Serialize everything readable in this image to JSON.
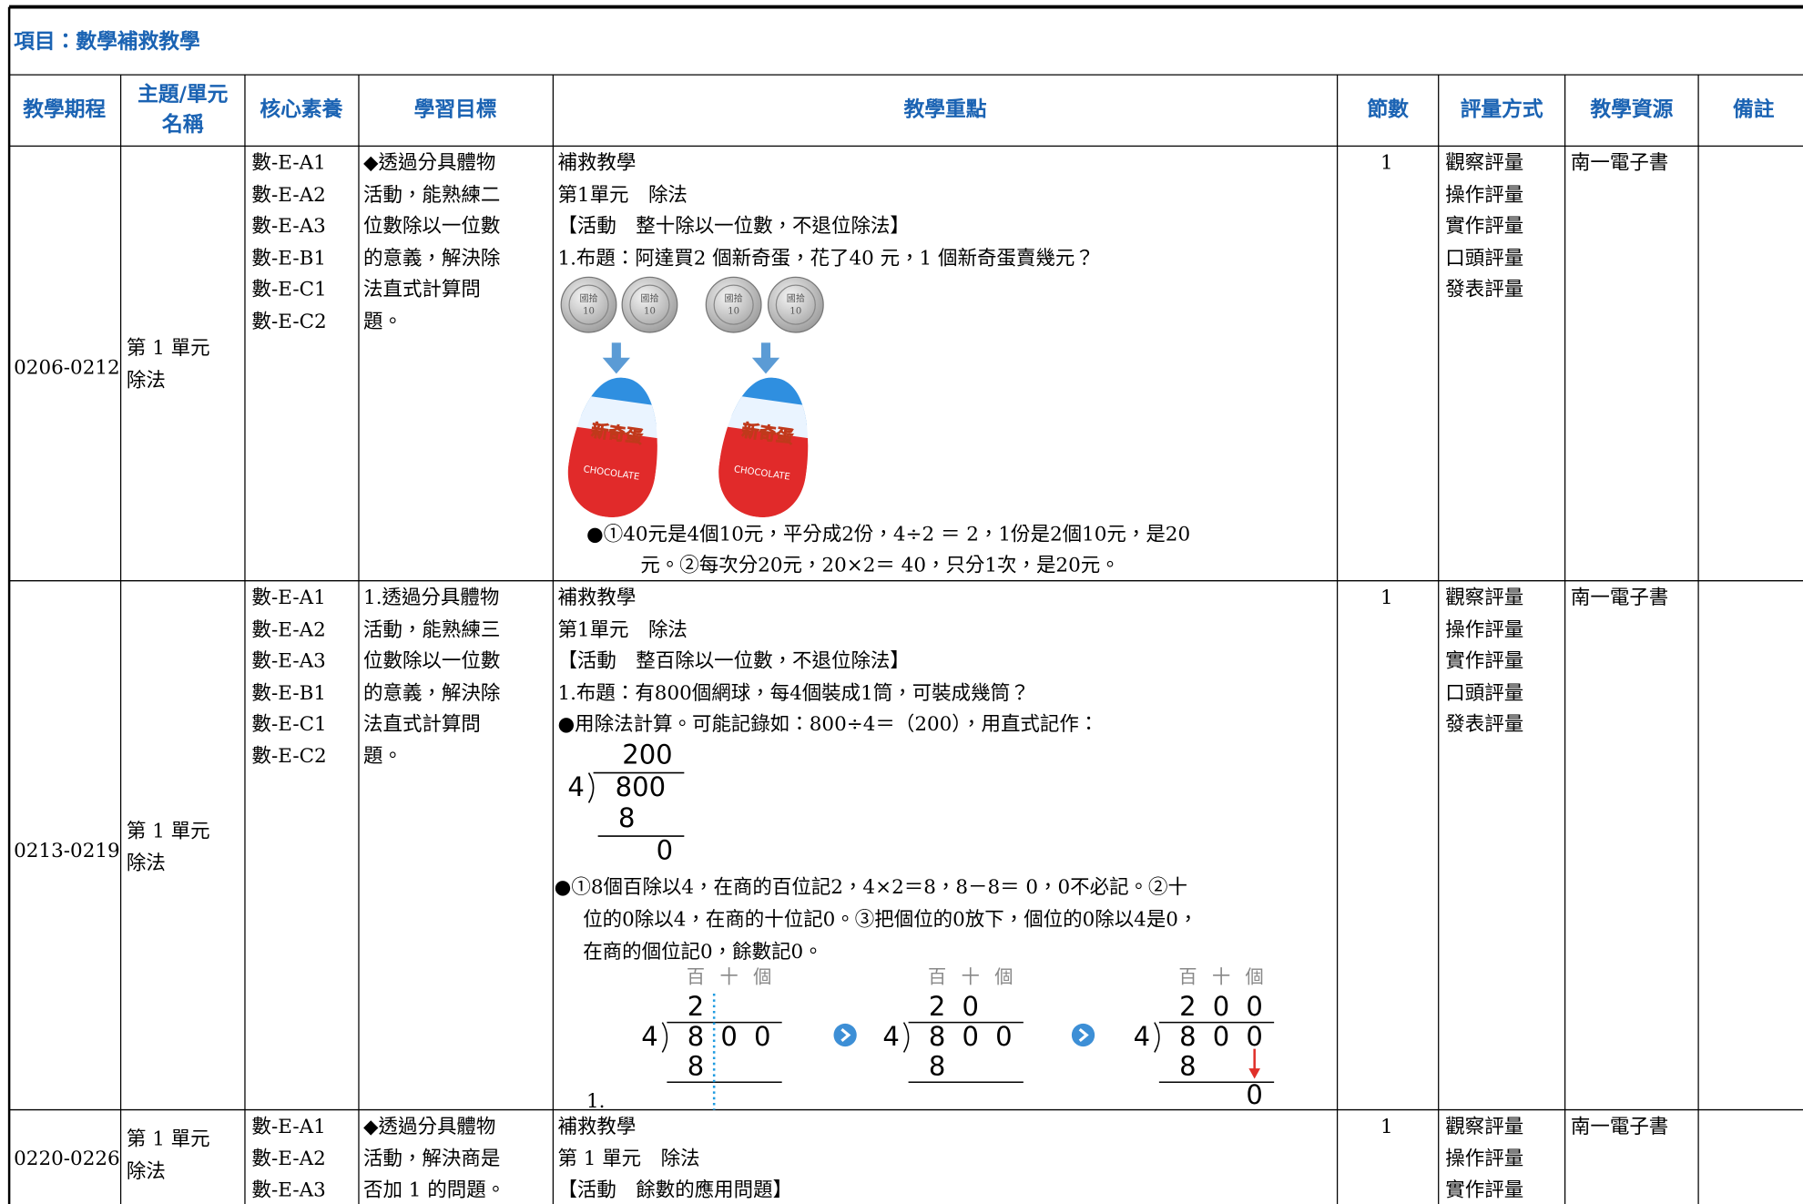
{
  "title": "項目：數學補救教學",
  "table": {
    "headers": [
      "教學期程",
      "主題/單元名稱",
      "核心素養",
      "學習目標",
      "教學重點",
      "節數",
      "評量方式",
      "教學資源",
      "備註"
    ],
    "rows": [
      {
        "period": "0206-0212",
        "unit": [
          "第 1 單元",
          "除法"
        ],
        "core": [
          "數-E-A1",
          "數-E-A2",
          "數-E-A3",
          "數-E-B1",
          "數-E-C1",
          "數-E-C2"
        ],
        "goal": [
          "◆透過分具體物",
          "活動，能熟練二",
          "位數除以一位數",
          "的意義，解決除",
          "法直式計算問",
          "題。"
        ],
        "focus": [
          "補救教學",
          "第1單元　除法",
          "【活動　整十除以一位數，不退位除法】",
          "1.布題：阿達買2 個新奇蛋，花了40 元，1 個新奇蛋賣幾元？"
        ],
        "figure": {
          "coin_text": [
            "國拾",
            "10"
          ],
          "egg_text": [
            "新奇蛋",
            "CHOCOLATE"
          ]
        },
        "notes": [
          "●①40元是4個10元，平分成2份，4÷2 ＝ 2，1份是2個10元，是20",
          "元。②每次分20元，20×2＝ 40，只分1次，是20元。"
        ],
        "sessions": "1",
        "assessment": [
          "觀察評量",
          "操作評量",
          "實作評量",
          "口頭評量",
          "發表評量"
        ],
        "resource": "南一電子書"
      },
      {
        "period": "0213-0219",
        "unit": [
          "第 1 單元",
          "除法"
        ],
        "core": [
          "數-E-A1",
          "數-E-A2",
          "數-E-A3",
          "數-E-B1",
          "數-E-C1",
          "數-E-C2"
        ],
        "goal": [
          "1.透過分具體物",
          "活動，能熟練三",
          "位數除以一位數",
          "的意義，解決除",
          "法直式計算問",
          "題。"
        ],
        "focus": [
          "補救教學",
          "第1單元　除法",
          "【活動　整百除以一位數，不退位除法】",
          "1.布題：有800個網球，每4個裝成1筒，可裝成幾筒？",
          "●用除法計算。可能記錄如：800÷4＝（200），用直式記作："
        ],
        "division": {
          "quotient": "200",
          "divisor": "4",
          "dividend": "800",
          "product": "8",
          "remainder": "0"
        },
        "notes": [
          "●①8個百除以4，在商的百位記2，4×2＝8，8－8＝ 0，0不必記。②十",
          "位的0除以4，在商的十位記0。③把個位的0放下，個位的0除以4是0，",
          "在商的個位記0，餘數記0。"
        ],
        "steps": {
          "places": [
            "百",
            "十",
            "個"
          ],
          "items": [
            {
              "quotient": [
                "2"
              ],
              "divisor": "4",
              "dividend": [
                "8",
                "0",
                "0"
              ],
              "product": "8"
            },
            {
              "quotient": [
                "2",
                "0"
              ],
              "divisor": "4",
              "dividend": [
                "8",
                "0",
                "0"
              ],
              "product": "8"
            },
            {
              "quotient": [
                "2",
                "0",
                "0"
              ],
              "divisor": "4",
              "dividend": [
                "8",
                "0",
                "0"
              ],
              "product": "8",
              "remainder": "0"
            }
          ]
        },
        "trailing": "1.",
        "sessions": "1",
        "assessment": [
          "觀察評量",
          "操作評量",
          "實作評量",
          "口頭評量",
          "發表評量"
        ],
        "resource": "南一電子書"
      },
      {
        "period": "0220-0226",
        "unit": [
          "第 1 單元",
          "除法"
        ],
        "core": [
          "數-E-A1",
          "數-E-A2",
          "數-E-A3"
        ],
        "goal": [
          "◆透過分具體物",
          "活動，解決商是",
          "否加 1 的問題。"
        ],
        "focus": [
          "補救教學",
          "第 1 單元　除法",
          "【活動　餘數的應用問題】"
        ],
        "sessions": "1",
        "assessment": [
          "觀察評量",
          "操作評量",
          "實作評量"
        ],
        "resource": "南一電子書"
      }
    ]
  }
}
